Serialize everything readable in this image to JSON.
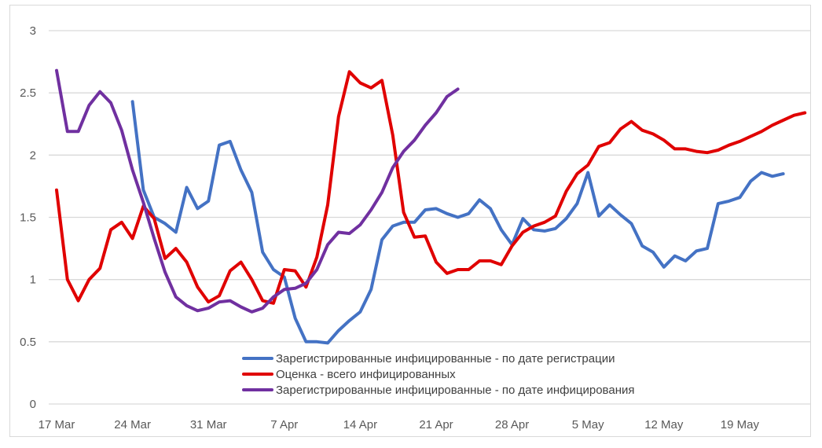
{
  "chart_data": {
    "type": "line",
    "title": "",
    "xlabel": "",
    "ylabel": "",
    "ylim": [
      0,
      3
    ],
    "yticks": [
      "0",
      "0.5",
      "1",
      "1.5",
      "2",
      "2.5",
      "3"
    ],
    "xticks": [
      "17 Mar",
      "24 Mar",
      "31 Mar",
      "7 Apr",
      "14 Apr",
      "21 Apr",
      "28 Apr",
      "5 May",
      "12 May",
      "19 May"
    ],
    "grid": true,
    "legend_position": "bottom-center-inside",
    "categories": [
      "17 Mar",
      "18 Mar",
      "19 Mar",
      "20 Mar",
      "21 Mar",
      "22 Mar",
      "23 Mar",
      "24 Mar",
      "25 Mar",
      "26 Mar",
      "27 Mar",
      "28 Mar",
      "29 Mar",
      "30 Mar",
      "31 Mar",
      "1 Apr",
      "2 Apr",
      "3 Apr",
      "4 Apr",
      "5 Apr",
      "6 Apr",
      "7 Apr",
      "8 Apr",
      "9 Apr",
      "10 Apr",
      "11 Apr",
      "12 Apr",
      "13 Apr",
      "14 Apr",
      "15 Apr",
      "16 Apr",
      "17 Apr",
      "18 Apr",
      "19 Apr",
      "20 Apr",
      "21 Apr",
      "22 Apr",
      "23 Apr",
      "24 Apr",
      "25 Apr",
      "26 Apr",
      "27 Apr",
      "28 Apr",
      "29 Apr",
      "30 Apr",
      "1 May",
      "2 May",
      "3 May",
      "4 May",
      "5 May",
      "6 May",
      "7 May",
      "8 May",
      "9 May",
      "10 May",
      "11 May",
      "12 May",
      "13 May",
      "14 May",
      "15 May",
      "16 May",
      "17 May",
      "18 May",
      "19 May",
      "20 May",
      "21 May",
      "22 May",
      "23 May",
      "24 May",
      "25 May"
    ],
    "series": [
      {
        "name": "Зарегистрированные инфицированные - по дате регистрации",
        "color": "#4472c4",
        "values": [
          null,
          null,
          null,
          null,
          null,
          null,
          null,
          2.43,
          1.72,
          1.5,
          1.45,
          1.38,
          1.74,
          1.57,
          1.63,
          2.08,
          2.11,
          1.88,
          1.7,
          1.22,
          1.08,
          1.02,
          0.69,
          0.5,
          0.5,
          0.49,
          0.59,
          0.67,
          0.74,
          0.92,
          1.32,
          1.43,
          1.46,
          1.46,
          1.56,
          1.57,
          1.53,
          1.5,
          1.53,
          1.64,
          1.57,
          1.4,
          1.28,
          1.49,
          1.4,
          1.39,
          1.41,
          1.49,
          1.61,
          1.86,
          1.51,
          1.6,
          1.52,
          1.45,
          1.27,
          1.22,
          1.1,
          1.19,
          1.15,
          1.23,
          1.25,
          1.61,
          1.63,
          1.66,
          1.79,
          1.86,
          1.83,
          1.85,
          null,
          null
        ]
      },
      {
        "name": "Оценка - всего инфицированных",
        "color": "#e00000",
        "values": [
          1.72,
          1.0,
          0.83,
          1.0,
          1.09,
          1.4,
          1.46,
          1.33,
          1.59,
          1.49,
          1.17,
          1.25,
          1.14,
          0.94,
          0.82,
          0.87,
          1.07,
          1.14,
          1.0,
          0.83,
          0.81,
          1.08,
          1.07,
          0.94,
          1.18,
          1.6,
          2.31,
          2.67,
          2.58,
          2.54,
          2.6,
          2.16,
          1.54,
          1.34,
          1.35,
          1.14,
          1.05,
          1.08,
          1.08,
          1.15,
          1.15,
          1.12,
          1.27,
          1.38,
          1.43,
          1.46,
          1.51,
          1.71,
          1.85,
          1.92,
          2.07,
          2.1,
          2.21,
          2.27,
          2.2,
          2.17,
          2.12,
          2.05,
          2.05,
          2.03,
          2.02,
          2.04,
          2.08,
          2.11,
          2.15,
          2.19,
          2.24,
          2.28,
          2.32,
          2.34
        ]
      },
      {
        "name": "Зарегистрированные инфицированные - по дате инфицирования",
        "color": "#7030a0",
        "values": [
          2.68,
          2.19,
          2.19,
          2.4,
          2.51,
          2.42,
          2.2,
          1.88,
          1.62,
          1.33,
          1.06,
          0.86,
          0.79,
          0.75,
          0.77,
          0.82,
          0.83,
          0.78,
          0.74,
          0.77,
          0.86,
          0.92,
          0.93,
          0.97,
          1.08,
          1.28,
          1.38,
          1.37,
          1.44,
          1.56,
          1.7,
          1.9,
          2.03,
          2.12,
          2.24,
          2.34,
          2.47,
          2.53,
          null,
          null,
          null,
          null,
          null,
          null,
          null,
          null,
          null,
          null,
          null,
          null,
          null,
          null,
          null,
          null,
          null,
          null,
          null,
          null,
          null,
          null,
          null,
          null,
          null,
          null,
          null,
          null,
          null,
          null,
          null,
          null
        ]
      }
    ]
  }
}
